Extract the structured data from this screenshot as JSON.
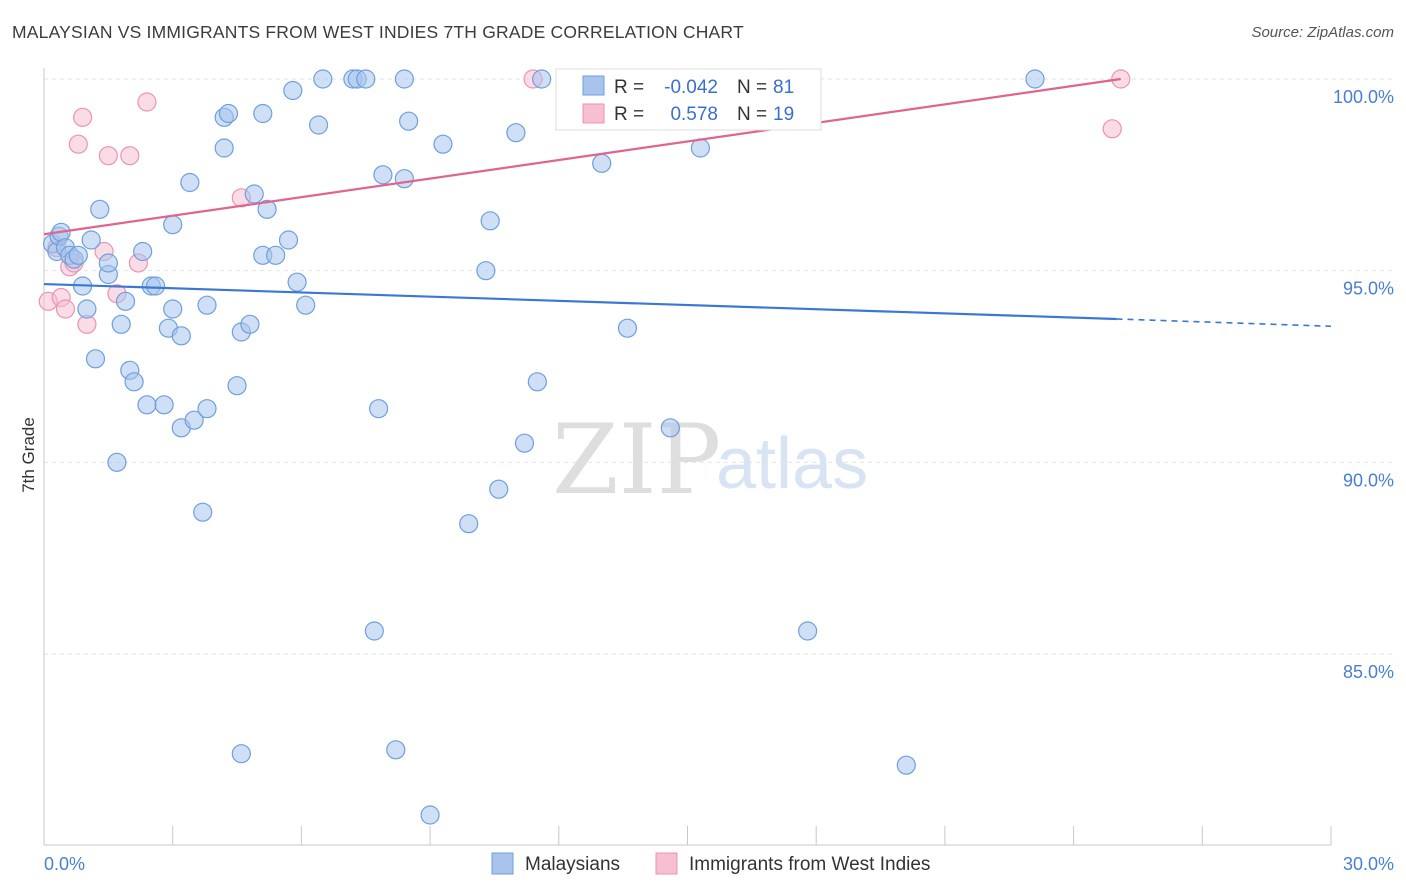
{
  "title": "MALAYSIAN VS IMMIGRANTS FROM WEST INDIES 7TH GRADE CORRELATION CHART",
  "source": "Source: ZipAtlas.com",
  "watermark": {
    "zip": "ZIP",
    "atlas": "atlas"
  },
  "colors": {
    "blue_fill": "#a8c4ec",
    "blue_stroke": "#6f9fdc",
    "blue_line": "#3a78d4",
    "pink_fill": "#f6bfd2",
    "pink_stroke": "#ec93b4",
    "pink_line": "#e0648e",
    "grid": "#e2e2e2",
    "axis": "#c8c8c8",
    "tick_text": "#4a7fd0"
  },
  "stats_box": {
    "rows": [
      {
        "series": "Malaysians",
        "r_label": "R =",
        "r_value": "-0.042",
        "n_label": "N =",
        "n_value": "81"
      },
      {
        "series": "Immigrants from West Indies",
        "r_label": "R =",
        "r_value": "0.578",
        "n_label": "N =",
        "n_value": "19"
      }
    ]
  },
  "chart_data": {
    "type": "scatter",
    "title": "MALAYSIAN VS IMMIGRANTS FROM WEST INDIES 7TH GRADE CORRELATION CHART",
    "xlabel": "",
    "ylabel": "7th Grade",
    "xlim": [
      0,
      30
    ],
    "ylim": [
      80,
      100.5
    ],
    "x_tick_labels": [
      "0.0%",
      "30.0%"
    ],
    "y_ticks": [
      85,
      90,
      95,
      100
    ],
    "y_tick_labels": [
      "85.0%",
      "90.0%",
      "95.0%",
      "100.0%"
    ],
    "grid": true,
    "legend": [
      "Malaysians",
      "Immigrants from West Indies"
    ],
    "legend_position": "bottom-center",
    "series": [
      {
        "name": "Malaysians",
        "r": -0.042,
        "n": 81,
        "trend": {
          "x0": 0.0,
          "y0": 94.65,
          "x1": 25.0,
          "y1": 93.74,
          "dash_to_x": 30.0,
          "dash_to_y": 93.55
        },
        "points": [
          [
            0.2,
            95.7
          ],
          [
            0.3,
            95.5
          ],
          [
            0.35,
            95.9
          ],
          [
            0.4,
            96.0
          ],
          [
            0.5,
            95.6
          ],
          [
            0.6,
            95.4
          ],
          [
            0.7,
            95.3
          ],
          [
            0.8,
            95.4
          ],
          [
            0.9,
            94.6
          ],
          [
            1.0,
            94.0
          ],
          [
            1.1,
            95.8
          ],
          [
            1.2,
            92.7
          ],
          [
            1.3,
            96.6
          ],
          [
            1.5,
            94.9
          ],
          [
            1.5,
            95.2
          ],
          [
            1.7,
            90.0
          ],
          [
            1.8,
            93.6
          ],
          [
            1.9,
            94.2
          ],
          [
            2.0,
            92.4
          ],
          [
            2.1,
            92.1
          ],
          [
            2.3,
            95.5
          ],
          [
            2.4,
            91.5
          ],
          [
            2.5,
            94.6
          ],
          [
            2.6,
            94.6
          ],
          [
            2.8,
            91.5
          ],
          [
            2.9,
            93.5
          ],
          [
            3.0,
            94.0
          ],
          [
            3.0,
            96.2
          ],
          [
            3.2,
            93.3
          ],
          [
            3.2,
            90.9
          ],
          [
            3.4,
            97.3
          ],
          [
            3.5,
            91.1
          ],
          [
            3.7,
            88.7
          ],
          [
            3.8,
            94.1
          ],
          [
            3.8,
            91.4
          ],
          [
            4.2,
            98.2
          ],
          [
            4.2,
            99.0
          ],
          [
            4.3,
            99.1
          ],
          [
            4.5,
            92.0
          ],
          [
            4.6,
            82.4
          ],
          [
            4.6,
            93.4
          ],
          [
            4.8,
            93.6
          ],
          [
            4.9,
            97.0
          ],
          [
            5.1,
            95.4
          ],
          [
            5.1,
            99.1
          ],
          [
            5.2,
            96.6
          ],
          [
            5.4,
            95.4
          ],
          [
            5.7,
            95.8
          ],
          [
            5.8,
            99.7
          ],
          [
            5.9,
            94.7
          ],
          [
            6.1,
            94.1
          ],
          [
            6.4,
            98.8
          ],
          [
            6.5,
            100.0
          ],
          [
            7.2,
            100.0
          ],
          [
            7.3,
            100.0
          ],
          [
            7.5,
            100.0
          ],
          [
            7.7,
            85.6
          ],
          [
            7.8,
            91.4
          ],
          [
            7.9,
            97.5
          ],
          [
            8.2,
            82.5
          ],
          [
            8.4,
            97.4
          ],
          [
            8.4,
            100.0
          ],
          [
            8.5,
            98.9
          ],
          [
            9.0,
            80.8
          ],
          [
            9.3,
            98.3
          ],
          [
            9.9,
            88.4
          ],
          [
            10.3,
            95.0
          ],
          [
            10.4,
            96.3
          ],
          [
            10.6,
            89.3
          ],
          [
            11.0,
            98.6
          ],
          [
            11.2,
            90.5
          ],
          [
            11.5,
            92.1
          ],
          [
            11.6,
            100.0
          ],
          [
            13.0,
            97.8
          ],
          [
            13.6,
            93.5
          ],
          [
            14.0,
            100.0
          ],
          [
            14.6,
            90.9
          ],
          [
            15.3,
            98.2
          ],
          [
            17.8,
            85.6
          ],
          [
            20.1,
            82.1
          ],
          [
            23.1,
            100.0
          ]
        ]
      },
      {
        "name": "Immigrants from West Indies",
        "r": 0.578,
        "n": 19,
        "trend": {
          "x0": 0.0,
          "y0": 95.95,
          "x1": 25.1,
          "y1": 100.0
        },
        "points": [
          [
            0.1,
            94.2
          ],
          [
            0.3,
            95.6
          ],
          [
            0.4,
            94.3
          ],
          [
            0.5,
            94.0
          ],
          [
            0.6,
            95.1
          ],
          [
            0.7,
            95.2
          ],
          [
            0.8,
            98.3
          ],
          [
            0.9,
            99.0
          ],
          [
            1.0,
            93.6
          ],
          [
            1.4,
            95.5
          ],
          [
            1.5,
            98.0
          ],
          [
            1.7,
            94.4
          ],
          [
            2.0,
            98.0
          ],
          [
            2.2,
            95.2
          ],
          [
            2.4,
            99.4
          ],
          [
            4.6,
            96.9
          ],
          [
            11.4,
            100.0
          ],
          [
            25.1,
            100.0
          ],
          [
            24.9,
            98.7
          ]
        ]
      }
    ]
  }
}
